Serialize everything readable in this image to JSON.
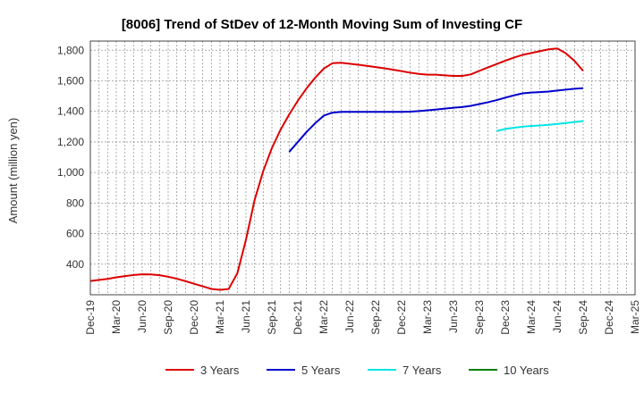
{
  "chart_data": {
    "type": "line",
    "title": "[8006]  Trend of StDev of 12-Month Moving Sum of Investing CF",
    "ylabel": "Amount (million yen)",
    "xlabel": "",
    "ylim": [
      200,
      1860
    ],
    "yticks": [
      400,
      600,
      800,
      1000,
      1200,
      1400,
      1600,
      1800
    ],
    "ytick_labels": [
      "400",
      "600",
      "800",
      "1,000",
      "1,200",
      "1,400",
      "1,600",
      "1,800"
    ],
    "xticks": [
      "Dec-19",
      "Mar-20",
      "Jun-20",
      "Sep-20",
      "Dec-20",
      "Mar-21",
      "Jun-21",
      "Sep-21",
      "Dec-21",
      "Mar-22",
      "Jun-22",
      "Sep-22",
      "Dec-22",
      "Mar-23",
      "Jun-23",
      "Sep-23",
      "Dec-23",
      "Mar-24",
      "Jun-24",
      "Sep-24",
      "Dec-24",
      "Mar-25"
    ],
    "grid": true,
    "legend_position": "bottom",
    "series": [
      {
        "name": "3 Years",
        "color": "#dd0000",
        "x": [
          "Dec-19",
          "Jan-20",
          "Feb-20",
          "Mar-20",
          "Apr-20",
          "May-20",
          "Jun-20",
          "Jul-20",
          "Aug-20",
          "Sep-20",
          "Oct-20",
          "Nov-20",
          "Dec-20",
          "Jan-21",
          "Feb-21",
          "Mar-21",
          "Apr-21",
          "May-21",
          "Jun-21",
          "Jul-21",
          "Aug-21",
          "Sep-21",
          "Oct-21",
          "Nov-21",
          "Dec-21",
          "Jan-22",
          "Feb-22",
          "Mar-22",
          "Apr-22",
          "May-22",
          "Jun-22",
          "Jul-22",
          "Aug-22",
          "Sep-22",
          "Oct-22",
          "Nov-22",
          "Dec-22",
          "Jan-23",
          "Feb-23",
          "Mar-23",
          "Apr-23",
          "May-23",
          "Jun-23",
          "Jul-23",
          "Aug-23",
          "Sep-23",
          "Oct-23",
          "Nov-23",
          "Dec-23",
          "Jan-24",
          "Feb-24",
          "Mar-24",
          "Apr-24",
          "May-24",
          "Jun-24",
          "Jul-24",
          "Aug-24",
          "Sep-24"
        ],
        "values": [
          290,
          297,
          304,
          314,
          322,
          329,
          334,
          333,
          328,
          318,
          305,
          289,
          272,
          255,
          238,
          232,
          238,
          340,
          560,
          820,
          1010,
          1160,
          1280,
          1380,
          1470,
          1550,
          1620,
          1680,
          1715,
          1718,
          1712,
          1705,
          1698,
          1690,
          1682,
          1673,
          1663,
          1653,
          1645,
          1640,
          1640,
          1636,
          1632,
          1632,
          1642,
          1665,
          1688,
          1710,
          1732,
          1752,
          1770,
          1782,
          1794,
          1806,
          1812,
          1780,
          1730,
          1665
        ]
      },
      {
        "name": "5 Years",
        "color": "#0000cc",
        "x": [
          "Nov-21",
          "Dec-21",
          "Jan-22",
          "Feb-22",
          "Mar-22",
          "Apr-22",
          "May-22",
          "Jun-22",
          "Jul-22",
          "Aug-22",
          "Sep-22",
          "Oct-22",
          "Nov-22",
          "Dec-22",
          "Jan-23",
          "Feb-23",
          "Mar-23",
          "Apr-23",
          "May-23",
          "Jun-23",
          "Jul-23",
          "Aug-23",
          "Sep-23",
          "Oct-23",
          "Nov-23",
          "Dec-23",
          "Jan-24",
          "Feb-24",
          "Mar-24",
          "Apr-24",
          "May-24",
          "Jun-24",
          "Jul-24",
          "Aug-24",
          "Sep-24"
        ],
        "values": [
          1135,
          1200,
          1265,
          1322,
          1372,
          1392,
          1397,
          1397,
          1397,
          1397,
          1397,
          1397,
          1397,
          1397,
          1398,
          1402,
          1407,
          1412,
          1418,
          1424,
          1428,
          1436,
          1448,
          1460,
          1474,
          1490,
          1505,
          1518,
          1523,
          1526,
          1530,
          1536,
          1542,
          1548,
          1552
        ]
      },
      {
        "name": "7 Years",
        "color": "#00e5e5",
        "x": [
          "Nov-23",
          "Dec-23",
          "Jan-24",
          "Feb-24",
          "Mar-24",
          "Apr-24",
          "May-24",
          "Jun-24",
          "Jul-24",
          "Aug-24",
          "Sep-24"
        ],
        "values": [
          1272,
          1285,
          1293,
          1300,
          1305,
          1308,
          1312,
          1318,
          1324,
          1330,
          1336
        ]
      },
      {
        "name": "10 Years",
        "color": "#008000",
        "x": [],
        "values": []
      }
    ]
  }
}
